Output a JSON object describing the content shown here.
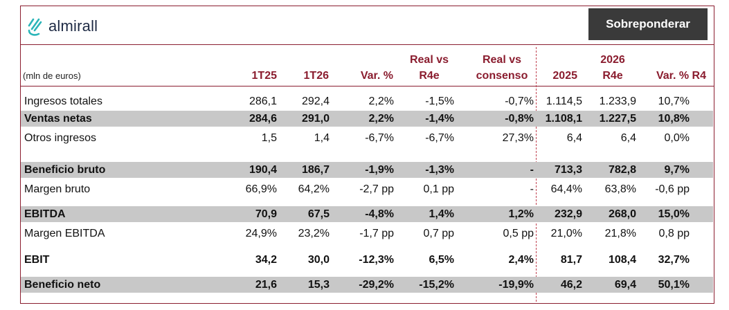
{
  "brand": {
    "name": "almirall",
    "accent": "#2bb5b8",
    "border_color": "#8a1c2e"
  },
  "rating": "Sobreponderar",
  "units_label": "(mln de euros)",
  "columns": [
    "1T25",
    "1T26",
    "Var. %",
    "Real vs R4e",
    "Real vs consenso",
    "2025",
    "2026 R4e",
    "Var. % R4"
  ],
  "header": {
    "c1": "1T25",
    "c2": "1T26",
    "c3": "Var. %",
    "c4_line1": "Real vs",
    "c4_line2": "R4e",
    "c5_line1": "Real vs",
    "c5_line2": "consenso",
    "c6": "2025",
    "c7_line1": "2026",
    "c7_line2": "R4e",
    "c8": "Var. % R4"
  },
  "rows": [
    {
      "label": "Ingresos totales",
      "values": [
        "286,1",
        "292,4",
        "2,2%",
        "-1,5%",
        "-0,7%",
        "1.114,5",
        "1.233,9",
        "10,7%"
      ]
    },
    {
      "label": "Ventas netas",
      "values": [
        "284,6",
        "291,0",
        "2,2%",
        "-1,4%",
        "-0,8%",
        "1.108,1",
        "1.227,5",
        "10,8%"
      ]
    },
    {
      "label": "Otros ingresos",
      "values": [
        "1,5",
        "1,4",
        "-6,7%",
        "-6,7%",
        "27,3%",
        "6,4",
        "6,4",
        "0,0%"
      ]
    },
    {
      "label": "Beneficio bruto",
      "values": [
        "190,4",
        "186,7",
        "-1,9%",
        "-1,3%",
        "-",
        "713,3",
        "782,8",
        "9,7%"
      ]
    },
    {
      "label": "Margen bruto",
      "values": [
        "66,9%",
        "64,2%",
        "-2,7 pp",
        "0,1 pp",
        "-",
        "64,4%",
        "63,8%",
        "-0,6 pp"
      ]
    },
    {
      "label": "EBITDA",
      "values": [
        "70,9",
        "67,5",
        "-4,8%",
        "1,4%",
        "1,2%",
        "232,9",
        "268,0",
        "15,0%"
      ]
    },
    {
      "label": "Margen EBITDA",
      "values": [
        "24,9%",
        "23,2%",
        "-1,7 pp",
        "0,7 pp",
        "0,5 pp",
        "21,0%",
        "21,8%",
        "0,8 pp"
      ]
    },
    {
      "label": "EBIT",
      "values": [
        "34,2",
        "30,0",
        "-12,3%",
        "6,5%",
        "2,4%",
        "81,7",
        "108,4",
        "32,7%"
      ]
    },
    {
      "label": "Beneficio neto",
      "values": [
        "21,6",
        "15,3",
        "-29,2%",
        "-15,2%",
        "-19,9%",
        "46,2",
        "69,4",
        "50,1%"
      ]
    }
  ]
}
